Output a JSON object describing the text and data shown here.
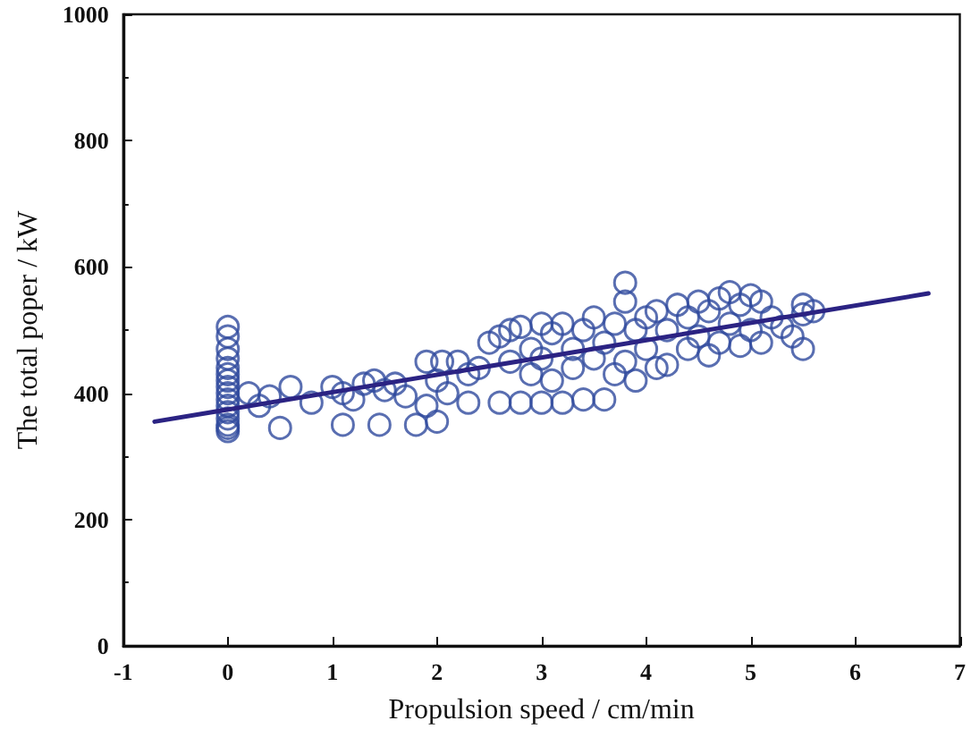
{
  "chart_data": {
    "type": "scatter",
    "xlabel": "Propulsion speed / cm/min",
    "ylabel": "The total poper / kW",
    "xlim": [
      -1,
      7
    ],
    "xticks": [
      -1,
      0,
      1,
      2,
      3,
      4,
      5,
      6,
      7
    ],
    "ylim": [
      0,
      1000
    ],
    "yticks": [
      0,
      200,
      400,
      600,
      800,
      1000
    ],
    "grid": false,
    "marker": "circle",
    "series": [
      {
        "color": "#2f4a9e",
        "x": [
          0,
          0,
          0,
          0,
          0,
          0,
          0,
          0,
          0,
          0,
          0,
          0,
          0,
          0,
          0,
          0,
          0.2,
          0.3,
          0.4,
          0.6,
          0.5,
          0.8,
          1,
          1.1,
          1.1,
          1.2,
          1.3,
          1.4,
          1.45,
          1.5,
          1.6,
          1.7,
          1.8,
          1.9,
          2,
          2,
          1.9,
          2.05,
          2.2,
          2.1,
          2.3,
          2.4,
          2.3,
          2.5,
          2.6,
          2.6,
          2.7,
          2.7,
          2.8,
          2.8,
          2.9,
          2.9,
          3,
          3,
          3,
          3.1,
          3.1,
          3.2,
          3.2,
          3.3,
          3.3,
          3.4,
          3.4,
          3.5,
          3.5,
          3.6,
          3.6,
          3.7,
          3.7,
          3.8,
          3.8,
          3.8,
          3.9,
          3.9,
          4,
          4,
          4.1,
          4.1,
          4.2,
          4.2,
          4.3,
          4.4,
          4.4,
          4.5,
          4.5,
          4.6,
          4.6,
          4.7,
          4.7,
          4.8,
          4.8,
          4.9,
          4.9,
          5,
          5,
          5.1,
          5.1,
          5.2,
          5.3,
          5.4,
          5.5,
          5.5,
          5.6,
          5.5
        ],
        "values": [
          340,
          345,
          350,
          360,
          370,
          380,
          390,
          400,
          410,
          420,
          430,
          440,
          455,
          470,
          490,
          505,
          400,
          380,
          395,
          410,
          345,
          385,
          410,
          400,
          350,
          390,
          415,
          420,
          350,
          405,
          415,
          395,
          350,
          380,
          420,
          355,
          450,
          450,
          450,
          400,
          430,
          440,
          385,
          480,
          490,
          385,
          500,
          450,
          505,
          385,
          470,
          430,
          510,
          385,
          455,
          495,
          420,
          510,
          385,
          470,
          440,
          500,
          390,
          520,
          455,
          480,
          390,
          510,
          430,
          575,
          545,
          450,
          500,
          420,
          520,
          470,
          530,
          440,
          500,
          445,
          540,
          520,
          470,
          545,
          490,
          530,
          460,
          550,
          480,
          560,
          510,
          540,
          475,
          555,
          500,
          545,
          480,
          520,
          505,
          490,
          540,
          525,
          530,
          470
        ]
      },
      {
        "type": "line",
        "color": "#2b2383",
        "marker": "none",
        "line_style": "solid",
        "x": [
          -0.7,
          6.7
        ],
        "values": [
          355,
          558
        ]
      }
    ]
  }
}
